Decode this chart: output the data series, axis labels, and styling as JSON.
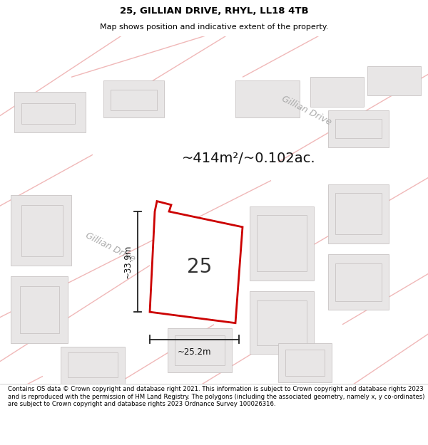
{
  "title_line1": "25, GILLIAN DRIVE, RHYL, LL18 4TB",
  "title_line2": "Map shows position and indicative extent of the property.",
  "footer_text": "Contains OS data © Crown copyright and database right 2021. This information is subject to Crown copyright and database rights 2023 and is reproduced with the permission of HM Land Registry. The polygons (including the associated geometry, namely x, y co-ordinates) are subject to Crown copyright and database rights 2023 Ordnance Survey 100026316.",
  "area_label": "~414m²/~0.102ac.",
  "label_25": "25",
  "dim_height": "~33.9m",
  "dim_width": "~25.2m",
  "road_label1": "Gillian Drive",
  "road_label2": "Gillian Drive",
  "map_bg": "#f7f5f5",
  "property_color": "#cc0000",
  "road_line_color": "#f0b8b8",
  "building_fill": "#e8e6e6",
  "building_edge": "#c8c4c4",
  "fig_width": 6.0,
  "fig_height": 6.25
}
